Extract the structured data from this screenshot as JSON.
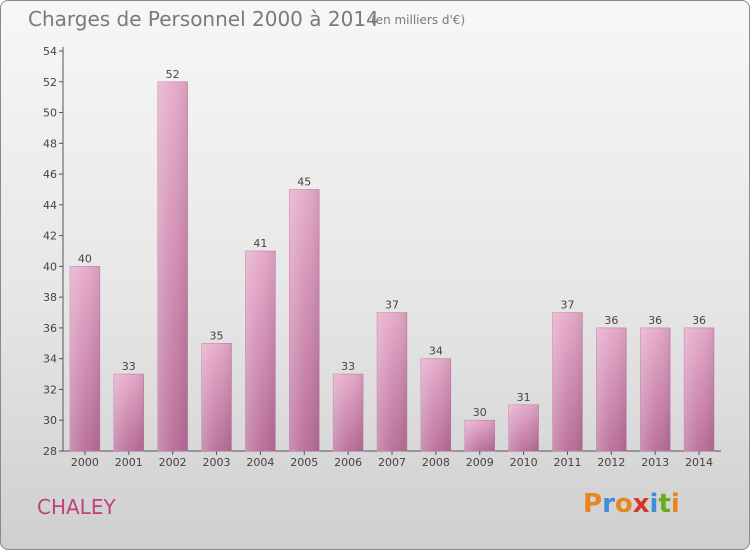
{
  "chart_data": {
    "type": "bar",
    "title": "Charges de Personnel 2000 à 2014",
    "subtitle": "(en milliers d'€)",
    "categories": [
      "2000",
      "2001",
      "2002",
      "2003",
      "2004",
      "2005",
      "2006",
      "2007",
      "2008",
      "2009",
      "2010",
      "2011",
      "2012",
      "2013",
      "2014"
    ],
    "values": [
      40,
      33,
      52,
      35,
      41,
      45,
      33,
      37,
      34,
      30,
      31,
      37,
      36,
      36,
      36
    ],
    "ylim": [
      28,
      54
    ],
    "yticks": [
      28,
      30,
      32,
      34,
      36,
      38,
      40,
      42,
      44,
      46,
      48,
      50,
      52,
      54
    ],
    "grid": false,
    "bar_color": "#d98cb5"
  },
  "footer": {
    "commune": "CHALEY",
    "logo_letters": [
      "P",
      "r",
      "o",
      "x",
      "i",
      "t",
      "i"
    ],
    "logo_colors": [
      "#e9851d",
      "#3f8fd6",
      "#e9851d",
      "#d9342b",
      "#3f8fd6",
      "#6aaa1f",
      "#e9851d"
    ]
  }
}
